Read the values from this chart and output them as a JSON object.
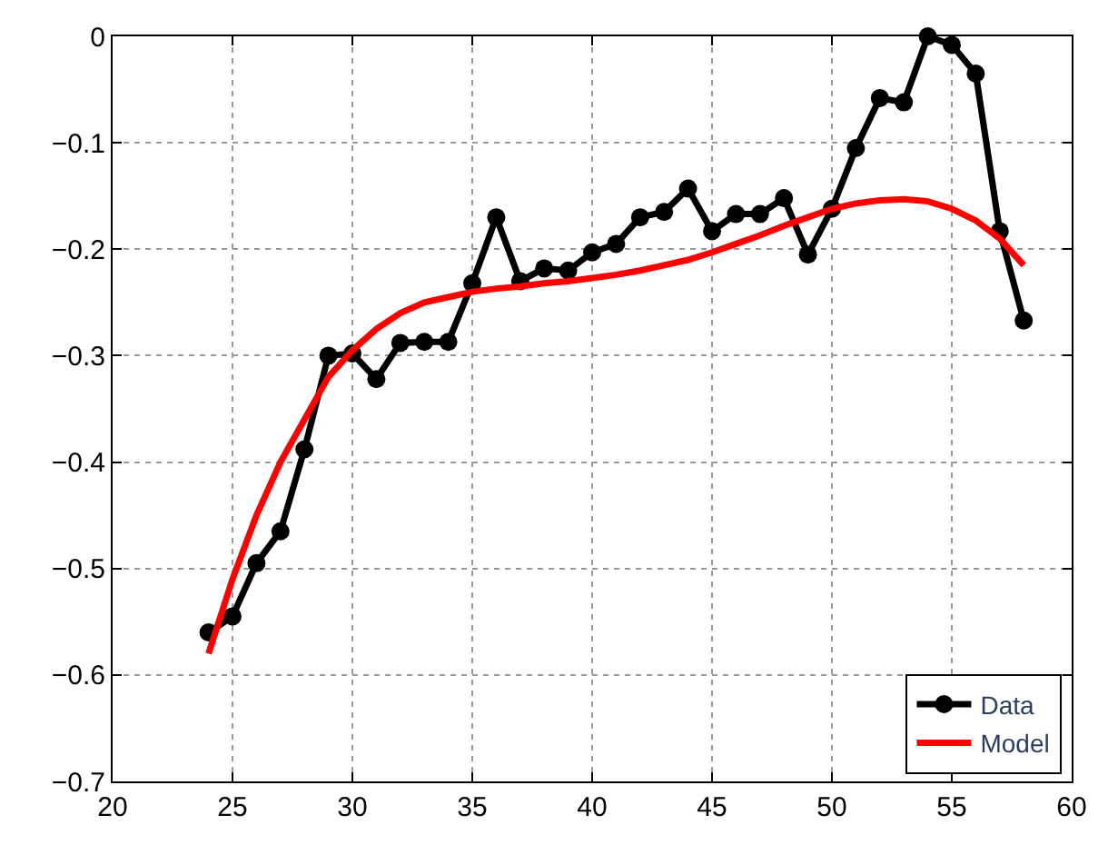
{
  "chart_data": {
    "type": "line",
    "x": [
      24,
      25,
      26,
      27,
      28,
      29,
      30,
      31,
      32,
      33,
      34,
      35,
      36,
      37,
      38,
      39,
      40,
      41,
      42,
      43,
      44,
      45,
      46,
      47,
      48,
      49,
      50,
      51,
      52,
      53,
      54,
      55,
      56,
      57,
      58
    ],
    "series": [
      {
        "name": "Data",
        "color": "#000000",
        "marker": "circle",
        "values": [
          -0.56,
          -0.545,
          -0.495,
          -0.465,
          -0.388,
          -0.3,
          -0.298,
          -0.322,
          -0.288,
          -0.287,
          -0.287,
          -0.232,
          -0.17,
          -0.23,
          -0.218,
          -0.22,
          -0.203,
          -0.195,
          -0.17,
          -0.165,
          -0.143,
          -0.183,
          -0.167,
          -0.167,
          -0.152,
          -0.205,
          -0.162,
          -0.105,
          -0.058,
          -0.062,
          0.0,
          -0.008,
          -0.035,
          -0.183,
          -0.267
        ]
      },
      {
        "name": "Model",
        "color": "#ff0000",
        "marker": "none",
        "values": [
          -0.58,
          -0.51,
          -0.45,
          -0.4,
          -0.36,
          -0.32,
          -0.295,
          -0.275,
          -0.26,
          -0.25,
          -0.245,
          -0.24,
          -0.237,
          -0.235,
          -0.232,
          -0.23,
          -0.227,
          -0.224,
          -0.22,
          -0.215,
          -0.21,
          -0.203,
          -0.195,
          -0.187,
          -0.178,
          -0.17,
          -0.162,
          -0.157,
          -0.154,
          -0.153,
          -0.155,
          -0.162,
          -0.173,
          -0.19,
          -0.215
        ]
      }
    ],
    "xlim": [
      20,
      60
    ],
    "xticks": [
      20,
      25,
      30,
      35,
      40,
      45,
      50,
      55,
      60
    ],
    "ylim": [
      -0.7,
      0
    ],
    "yticks": [
      {
        "value": -0.7,
        "label": "−0.7"
      },
      {
        "value": -0.6,
        "label": "−0.6"
      },
      {
        "value": -0.5,
        "label": "−0.5"
      },
      {
        "value": -0.4,
        "label": "−0.4"
      },
      {
        "value": -0.3,
        "label": "−0.3"
      },
      {
        "value": -0.2,
        "label": "−0.2"
      },
      {
        "value": -0.1,
        "label": "−0.1"
      },
      0
    ],
    "grid": true,
    "legend": "bottom right",
    "line_style": "solid"
  }
}
